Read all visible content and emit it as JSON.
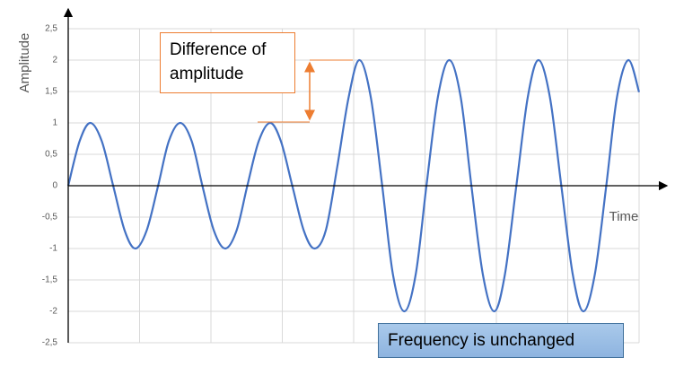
{
  "chart_data": {
    "type": "line",
    "x_label": "Time",
    "y_label": "Amplitude",
    "annotations": [
      "Difference of amplitude",
      "Frequency is unchanged"
    ],
    "x": [
      0,
      0.16,
      0.31,
      0.47,
      0.63,
      0.79,
      0.94,
      1.1,
      1.26,
      1.41,
      1.57,
      1.73,
      1.88,
      2.04,
      2.2,
      2.36,
      2.51,
      2.67,
      2.83,
      2.98,
      3.14,
      3.3,
      3.45,
      3.61,
      3.77,
      3.93,
      4.08,
      4.24,
      4.4,
      4.55,
      4.71,
      4.87,
      5.02,
      5.18,
      5.34,
      5.5,
      5.65,
      5.81,
      5.97,
      6.12,
      6.28,
      6.44,
      6.59,
      6.75,
      6.91,
      7.07,
      7.22,
      7.38,
      7.54,
      7.69,
      7.85,
      8
    ],
    "values": [
      0,
      0.71,
      1,
      0.71,
      0,
      -0.71,
      -1,
      -0.71,
      0,
      0.71,
      1,
      0.71,
      0,
      -0.71,
      -1,
      -0.71,
      0,
      0.71,
      1,
      0.71,
      0,
      -0.71,
      -1,
      -0.71,
      0.3,
      1.41,
      2,
      1.41,
      0,
      -1.41,
      -2,
      -1.41,
      0,
      1.41,
      2,
      1.41,
      0,
      -1.41,
      -2,
      -1.41,
      0,
      1.41,
      2,
      1.41,
      0,
      -1.41,
      -2,
      -1.41,
      0,
      1.41,
      2,
      1.49
    ],
    "color": "#4472c4",
    "xlim": [
      0,
      8
    ],
    "ylim": [
      -2.5,
      2.5
    ],
    "yticks": [
      {
        "value": -2.5,
        "label": "-2,5"
      },
      -2,
      {
        "value": -1.5,
        "label": "-1,5"
      },
      -1,
      {
        "value": -0.5,
        "label": "-0,5"
      },
      0,
      {
        "value": 0.5,
        "label": "0,5"
      },
      1,
      {
        "value": 1.5,
        "label": "1,5"
      },
      2,
      {
        "value": 2.5,
        "label": "2,5"
      }
    ],
    "grid": true
  }
}
